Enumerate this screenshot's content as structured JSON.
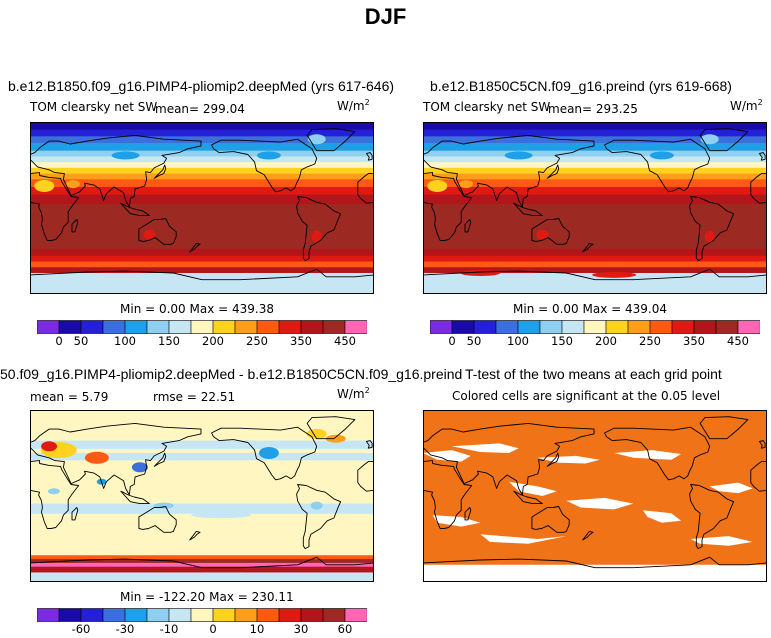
{
  "page": {
    "title": "DJF"
  },
  "colors": {
    "abs_scale": [
      "#7b2be2",
      "#1a0aa6",
      "#2420d8",
      "#3b6fdc",
      "#1fa0e6",
      "#8fd0f0",
      "#c6e6f4",
      "#fff6c2",
      "#ffd21f",
      "#ff9e1a",
      "#ff5a14",
      "#e01a12",
      "#b2151a",
      "#9c2a22",
      "#ff66b6"
    ],
    "diff_scale": [
      "#7b2be2",
      "#1a0aa6",
      "#2420d8",
      "#3b6fdc",
      "#1fa0e6",
      "#8fd0f0",
      "#c6e6f4",
      "#fff6c2",
      "#ffd21f",
      "#ff9e1a",
      "#ff5a14",
      "#e01a12",
      "#b2151a",
      "#9c2a22",
      "#ff66b6"
    ],
    "significant": "#f07318"
  },
  "chart_data": [
    {
      "type": "heatmap",
      "panel": "top-left",
      "title": "b.e12.B1850.f09_g16.PIMP4-pliomip2.deepMed (yrs 617-646)",
      "field_label": "TOM clearsky net SW",
      "mean_text": "mean= 299.04",
      "units_text": "W/m",
      "units_exp": "2",
      "min_max_text": "Min =    0.00 Max = 439.38",
      "colorbar": {
        "levels": [
          25,
          50,
          75,
          100,
          125,
          150,
          175,
          200,
          225,
          250,
          300,
          350,
          400,
          450
        ],
        "tick_labels": [
          "0",
          "50",
          "100",
          "150",
          "200",
          "250",
          "350",
          "450"
        ]
      }
    },
    {
      "type": "heatmap",
      "panel": "top-right",
      "title": "b.e12.B1850C5CN.f09_g16.preind (yrs 619-668)",
      "field_label": "TOM clearsky net SW",
      "mean_text": "mean= 293.25",
      "units_text": "W/m",
      "units_exp": "2",
      "min_max_text": "Min =    0.00 Max = 439.04",
      "colorbar": {
        "levels": [
          25,
          50,
          75,
          100,
          125,
          150,
          175,
          200,
          225,
          250,
          300,
          350,
          400,
          450
        ],
        "tick_labels": [
          "0",
          "50",
          "100",
          "150",
          "200",
          "250",
          "350",
          "450"
        ]
      }
    },
    {
      "type": "heatmap",
      "panel": "bottom-left",
      "title": "50.f09_g16.PIMP4-pliomip2.deepMed - b.e12.B1850C5CN.f09_g16.preind",
      "mean_text": "mean =    5.79",
      "rmse_text": "rmse =  22.51",
      "units_text": "W/m",
      "units_exp": "2",
      "min_max_text": "Min = -122.20 Max = 230.11",
      "colorbar": {
        "levels": [
          -70,
          -60,
          -50,
          -30,
          -20,
          -10,
          -5,
          0,
          5,
          10,
          20,
          30,
          50,
          60,
          70
        ],
        "tick_labels": [
          "-60",
          "-30",
          "-10",
          "0",
          "10",
          "30",
          "60"
        ]
      }
    },
    {
      "type": "heatmap",
      "panel": "bottom-right",
      "title": "T-test of the two means at each grid point",
      "subtitle": "Colored cells are significant at the 0.05 level"
    }
  ]
}
